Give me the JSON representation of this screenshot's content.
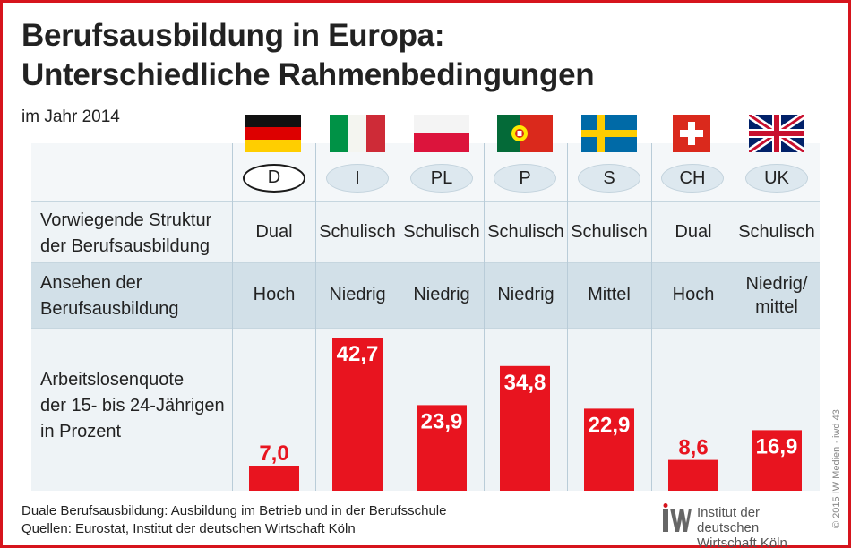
{
  "title_line1": "Berufsausbildung in Europa:",
  "title_line2": "Unterschiedliche Rahmenbedingungen",
  "subtitle": "im Jahr 2014",
  "row_labels": {
    "structure_1": "Vorwiegende Struktur",
    "structure_2": "der Berufsausbildung",
    "reputation_1": "Ansehen der",
    "reputation_2": "Berufsausbildung",
    "unemployment_1": "Arbeitslosenquote",
    "unemployment_2": "der 15- bis 24-Jährigen",
    "unemployment_3": "in Prozent"
  },
  "countries": [
    {
      "code": "D",
      "structure": "Dual",
      "reputation": "Hoch",
      "reputation_2": ""
    },
    {
      "code": "I",
      "structure": "Schulisch",
      "reputation": "Niedrig",
      "reputation_2": ""
    },
    {
      "code": "PL",
      "structure": "Schulisch",
      "reputation": "Niedrig",
      "reputation_2": ""
    },
    {
      "code": "P",
      "structure": "Schulisch",
      "reputation": "Niedrig",
      "reputation_2": ""
    },
    {
      "code": "S",
      "structure": "Schulisch",
      "reputation": "Mittel",
      "reputation_2": ""
    },
    {
      "code": "CH",
      "structure": "Dual",
      "reputation": "Hoch",
      "reputation_2": ""
    },
    {
      "code": "UK",
      "structure": "Schulisch",
      "reputation": "Niedrig/",
      "reputation_2": "mittel"
    }
  ],
  "chart_data": {
    "type": "bar",
    "categories": [
      "D",
      "I",
      "PL",
      "P",
      "S",
      "CH",
      "UK"
    ],
    "values": [
      7.0,
      42.7,
      23.9,
      34.8,
      22.9,
      8.6,
      16.9
    ],
    "value_labels": [
      "7,0",
      "42,7",
      "23,9",
      "34,8",
      "22,9",
      "8,6",
      "16,9"
    ],
    "title": "Berufsausbildung in Europa: Unterschiedliche Rahmenbedingungen",
    "subtitle": "im Jahr 2014",
    "ylabel": "Arbeitslosenquote der 15- bis 24-Jährigen in Prozent",
    "ylim": [
      0,
      50
    ],
    "bar_color": "#e8141f",
    "label_color": "#e8141f"
  },
  "footnote": "Duale Berufsausbildung: Ausbildung im Betrieb und in der Berufsschule",
  "source": "Quellen: Eurostat, Institut der deutschen Wirtschaft Köln",
  "logo": {
    "line1": "Institut der deutschen",
    "line2": "Wirtschaft Köln"
  },
  "credit": "© 2015 IW Medien · iwd 43"
}
